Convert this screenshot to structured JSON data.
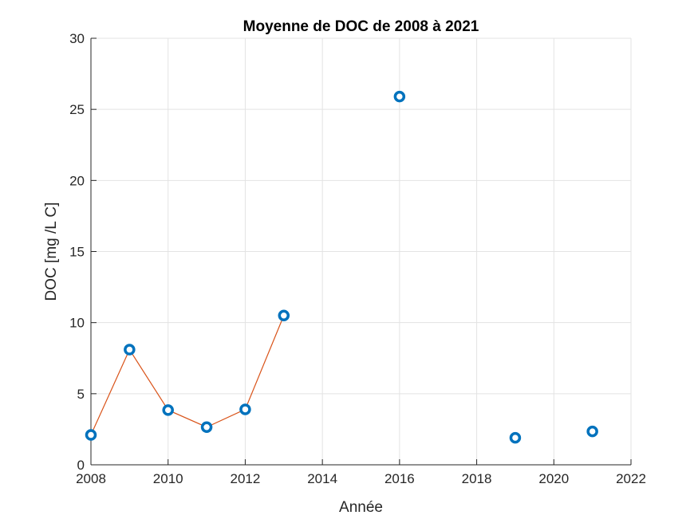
{
  "chart_data": {
    "type": "line",
    "title": "Moyenne de DOC de 2008 à 2021",
    "xlabel": "Année",
    "ylabel": "DOC [mg /L C]",
    "xlim": [
      2008,
      2022
    ],
    "ylim": [
      0,
      30
    ],
    "xticks": [
      "2008",
      "2010",
      "2012",
      "2014",
      "2016",
      "2018",
      "2020",
      "2022"
    ],
    "yticks": [
      "0",
      "5",
      "10",
      "15",
      "20",
      "25",
      "30"
    ],
    "grid": true,
    "legend": "none",
    "series": [
      {
        "style": "markers",
        "marker": "circle",
        "color": "#0072BD",
        "points": [
          {
            "x": 2008,
            "y": 2.1
          },
          {
            "x": 2009,
            "y": 8.1
          },
          {
            "x": 2010,
            "y": 3.85
          },
          {
            "x": 2011,
            "y": 2.65
          },
          {
            "x": 2012,
            "y": 3.9
          },
          {
            "x": 2013,
            "y": 10.5
          },
          {
            "x": 2016,
            "y": 25.9
          },
          {
            "x": 2019,
            "y": 1.9
          },
          {
            "x": 2021,
            "y": 2.35
          }
        ]
      },
      {
        "style": "line",
        "color": "#D95319",
        "points": [
          {
            "x": 2008,
            "y": 2.1
          },
          {
            "x": 2009,
            "y": 8.1
          },
          {
            "x": 2010,
            "y": 3.85
          },
          {
            "x": 2011,
            "y": 2.65
          },
          {
            "x": 2012,
            "y": 3.9
          },
          {
            "x": 2013,
            "y": 10.5
          }
        ]
      }
    ]
  }
}
